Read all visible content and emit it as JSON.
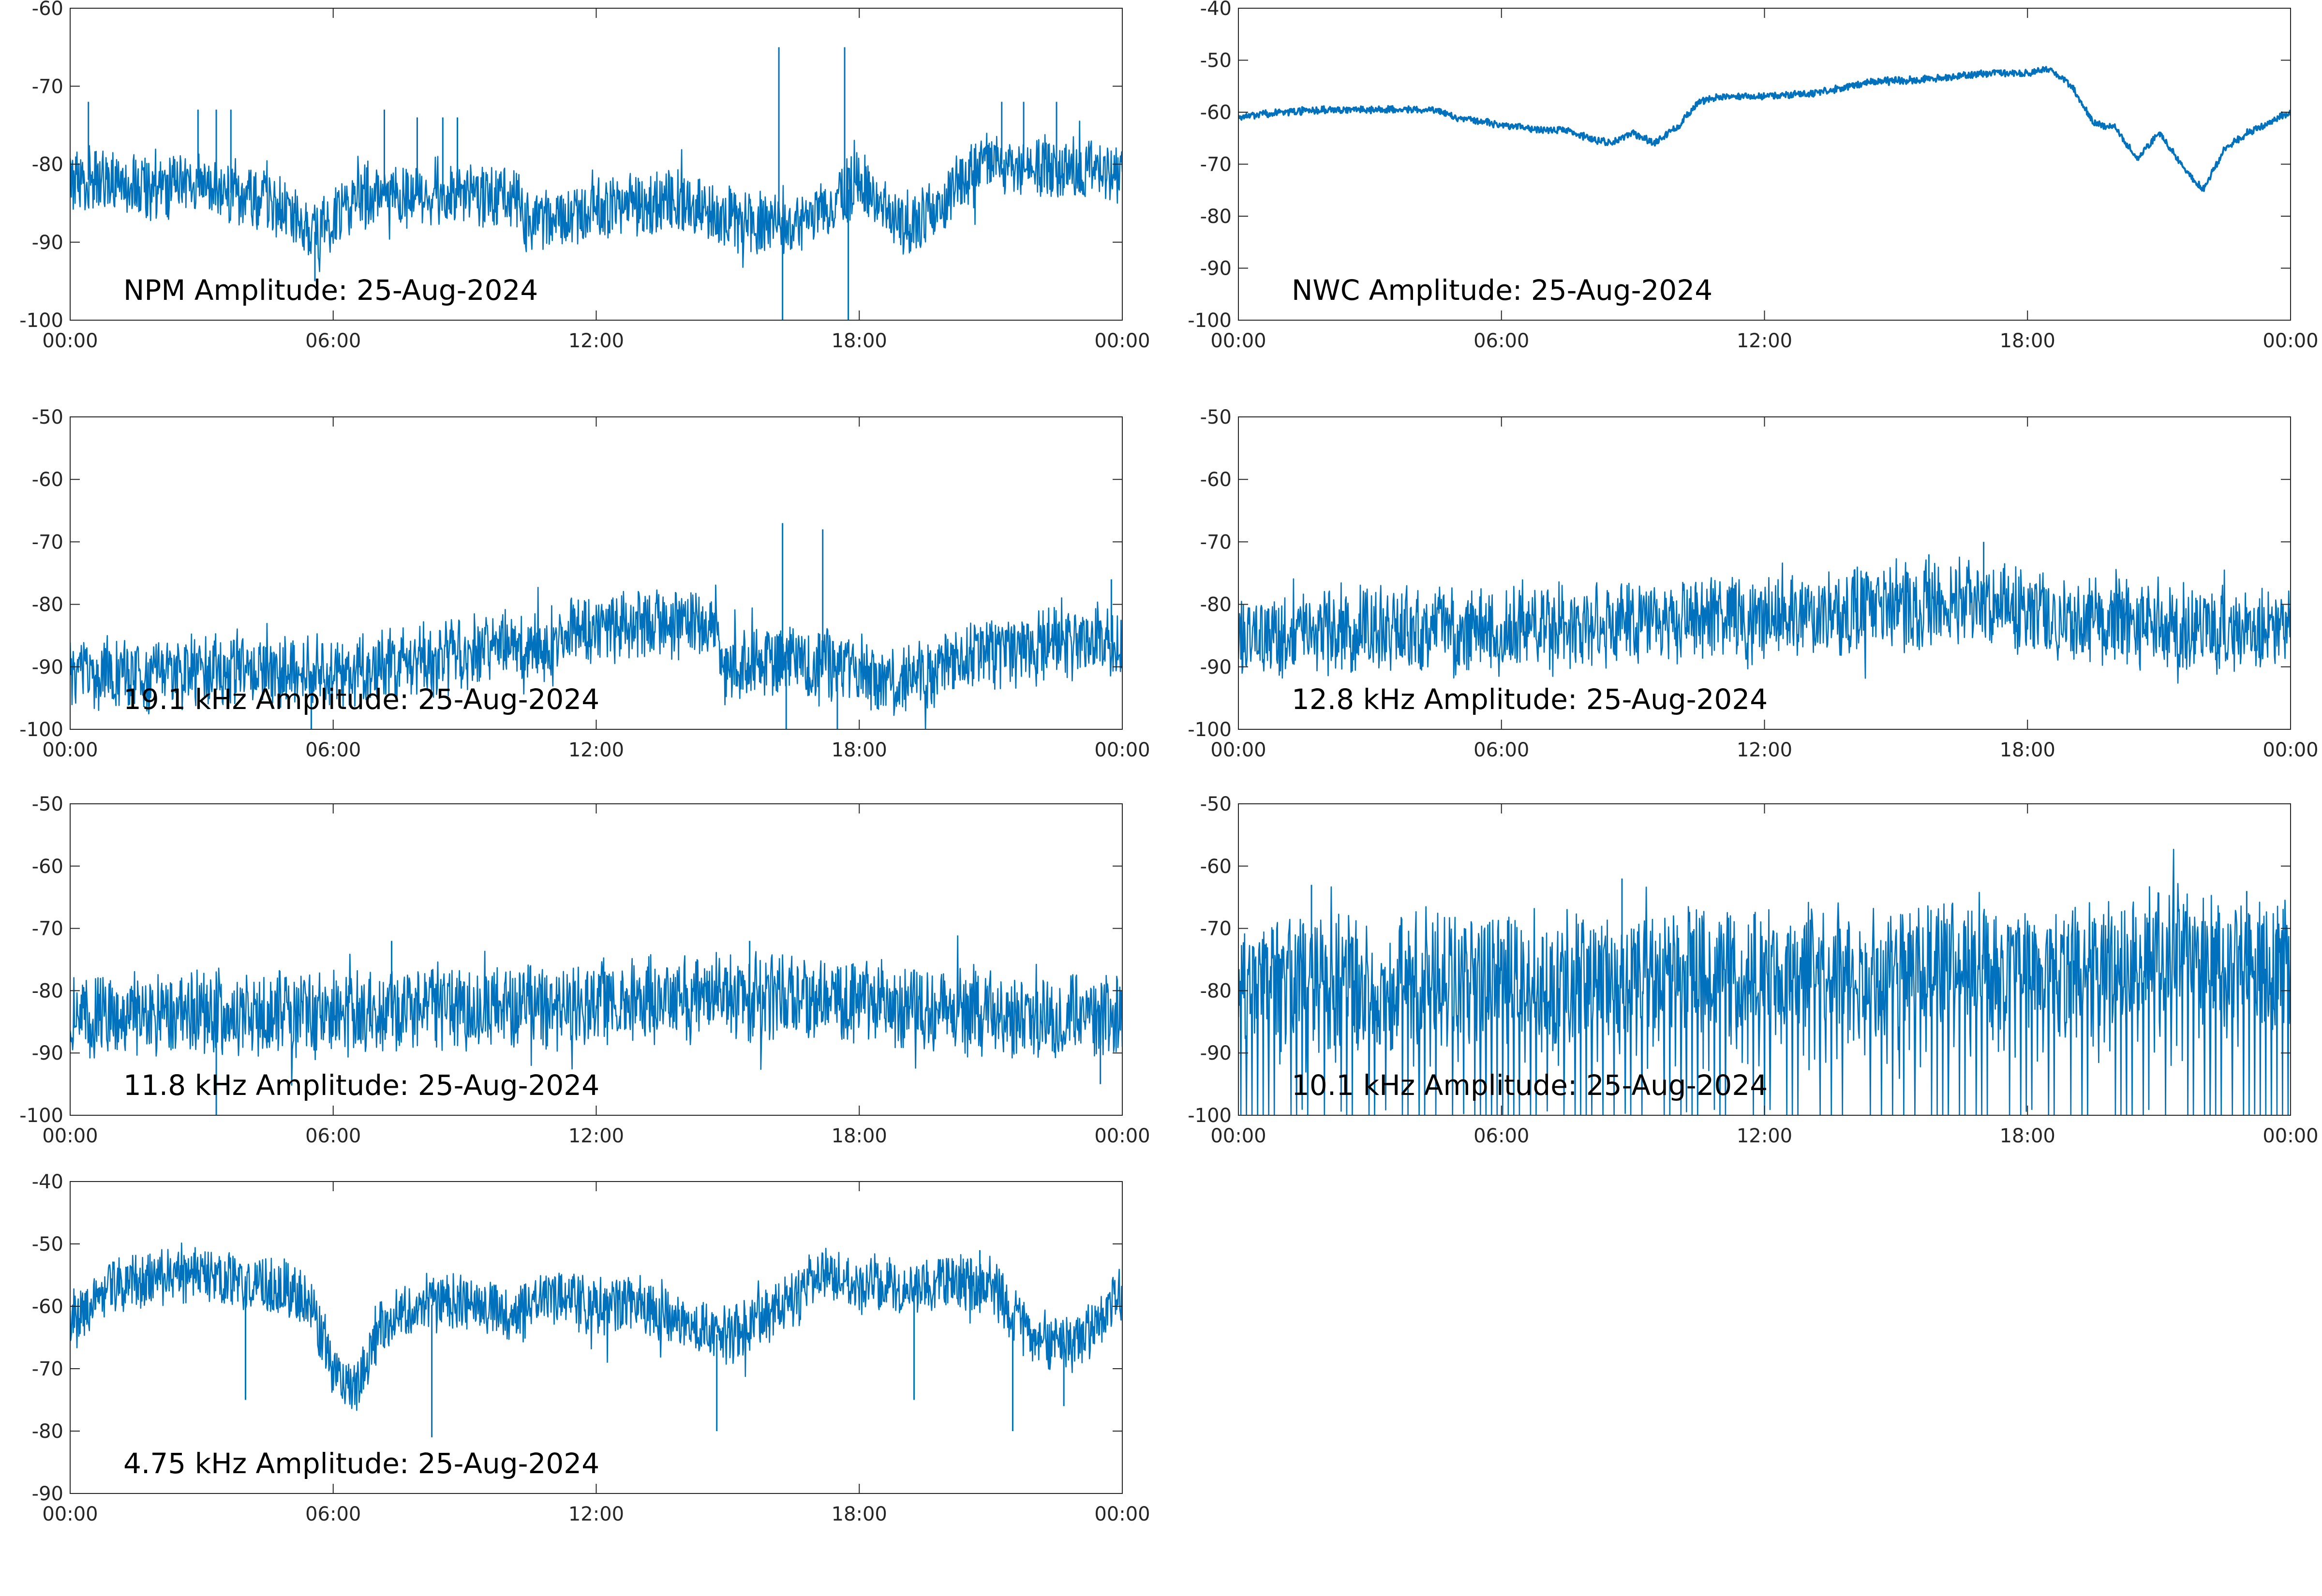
{
  "figure": {
    "style": {
      "line_color": "#0072bd",
      "axes_color": "#262626",
      "text_color": "#000000"
    }
  },
  "chart_data": [
    {
      "type": "line",
      "title": "NPM Amplitude: 25-Aug-2024",
      "xlabel": "",
      "ylabel": "",
      "xlim": [
        "00:00",
        "24:00"
      ],
      "xticks": [
        "00:00",
        "06:00",
        "12:00",
        "18:00",
        "00:00"
      ],
      "ylim": [
        -100,
        -60
      ],
      "yticks": [
        -100,
        -90,
        -80,
        -70,
        -60
      ],
      "grid": false,
      "series": [
        {
          "profile": {
            "x": [
              "00:00",
              "01:00",
              "02:00",
              "03:00",
              "04:00",
              "05:00",
              "05:30",
              "06:00",
              "06:30",
              "07:00",
              "08:00",
              "09:00",
              "10:00",
              "10:20",
              "10:21",
              "11:00",
              "12:00",
              "13:00",
              "14:00",
              "15:00",
              "16:00",
              "17:00",
              "18:00",
              "18:30",
              "19:00",
              "19:30",
              "20:00",
              "21:00",
              "22:00",
              "23:00",
              "24:00"
            ],
            "y": [
              -82,
              -82,
              -83,
              -83,
              -84,
              -86,
              -89,
              -87,
              -84,
              -84,
              -84,
              -84,
              -84,
              -85,
              -88,
              -87,
              -86,
              -85,
              -85,
              -87,
              -88,
              -87,
              -82,
              -85,
              -88,
              -87,
              -84,
              -80,
              -80,
              -81,
              -81
            ]
          },
          "noise_band": 3.5,
          "spikes": [
            {
              "x": "00:25",
              "y": -72
            },
            {
              "x": "02:55",
              "y": -73
            },
            {
              "x": "03:20",
              "y": -73
            },
            {
              "x": "03:40",
              "y": -73
            },
            {
              "x": "07:10",
              "y": -73
            },
            {
              "x": "07:55",
              "y": -74
            },
            {
              "x": "08:30",
              "y": -74
            },
            {
              "x": "08:50",
              "y": -74
            },
            {
              "x": "16:10",
              "y": -65
            },
            {
              "x": "16:15",
              "y": -100
            },
            {
              "x": "17:40",
              "y": -65
            },
            {
              "x": "17:45",
              "y": -100
            },
            {
              "x": "21:15",
              "y": -72
            },
            {
              "x": "21:45",
              "y": -72
            },
            {
              "x": "22:30",
              "y": -72
            },
            {
              "x": "05:35",
              "y": -95
            }
          ]
        }
      ]
    },
    {
      "type": "line",
      "title": "NWC Amplitude: 25-Aug-2024",
      "xlabel": "",
      "ylabel": "",
      "xlim": [
        "00:00",
        "24:00"
      ],
      "xticks": [
        "00:00",
        "06:00",
        "12:00",
        "18:00",
        "00:00"
      ],
      "ylim": [
        -100,
        -40
      ],
      "yticks": [
        -100,
        -90,
        -80,
        -70,
        -60,
        -50,
        -40
      ],
      "grid": false,
      "series": [
        {
          "profile": {
            "x": [
              "00:00",
              "01:00",
              "02:00",
              "03:00",
              "04:00",
              "04:30",
              "05:00",
              "06:00",
              "07:00",
              "07:30",
              "08:00",
              "08:30",
              "09:00",
              "09:30",
              "10:00",
              "10:30",
              "11:00",
              "12:00",
              "13:00",
              "14:00",
              "14:30",
              "15:00",
              "16:00",
              "17:00",
              "17:30",
              "18:00",
              "18:30",
              "19:00",
              "19:30",
              "20:00",
              "20:30",
              "21:00",
              "21:30",
              "22:00",
              "22:30",
              "23:00",
              "23:30",
              "24:00"
            ],
            "y": [
              -61,
              -60,
              -59.5,
              -59.5,
              -59.5,
              -59.5,
              -61,
              -62.5,
              -63.5,
              -63.5,
              -65,
              -66,
              -64,
              -66,
              -63,
              -58,
              -57,
              -57,
              -56.5,
              -55,
              -54,
              -54,
              -53.5,
              -52.5,
              -52.5,
              -52.5,
              -51.5,
              -55,
              -62,
              -63,
              -69,
              -64,
              -70,
              -75,
              -67,
              -64,
              -62,
              -60
            ]
          },
          "noise_band": 0.6,
          "spikes": []
        }
      ]
    },
    {
      "type": "line",
      "title": "19.1 kHz Amplitude: 25-Aug-2024",
      "xlabel": "",
      "ylabel": "",
      "xlim": [
        "00:00",
        "24:00"
      ],
      "xticks": [
        "00:00",
        "06:00",
        "12:00",
        "18:00",
        "00:00"
      ],
      "ylim": [
        -100,
        -50
      ],
      "yticks": [
        -100,
        -90,
        -80,
        -70,
        -60,
        -50
      ],
      "grid": false,
      "series": [
        {
          "profile": {
            "x": [
              "00:00",
              "02:00",
              "04:00",
              "06:00",
              "08:00",
              "09:30",
              "10:00",
              "11:00",
              "11:10",
              "12:00",
              "13:00",
              "14:00",
              "14:45",
              "14:50",
              "16:00",
              "16:30",
              "17:00",
              "17:10",
              "18:00",
              "18:20",
              "19:00",
              "20:00",
              "21:00",
              "22:00",
              "23:00",
              "24:00"
            ],
            "y": [
              -92,
              -91,
              -90,
              -91,
              -89,
              -88,
              -86,
              -88,
              -84,
              -84,
              -83,
              -83,
              -83,
              -90,
              -89,
              -89,
              -91,
              -89,
              -90,
              -92,
              -92,
              -90,
              -88,
              -87,
              -86,
              -86
            ]
          },
          "noise_band": 5,
          "spikes": [
            {
              "x": "16:15",
              "y": -67
            },
            {
              "x": "16:20",
              "y": -100
            },
            {
              "x": "17:10",
              "y": -68
            },
            {
              "x": "17:30",
              "y": -100
            },
            {
              "x": "23:45",
              "y": -76
            },
            {
              "x": "05:30",
              "y": -100
            }
          ]
        }
      ]
    },
    {
      "type": "line",
      "title": "12.8 kHz Amplitude: 25-Aug-2024",
      "xlabel": "",
      "ylabel": "",
      "xlim": [
        "00:00",
        "24:00"
      ],
      "xticks": [
        "00:00",
        "06:00",
        "12:00",
        "18:00",
        "00:00"
      ],
      "ylim": [
        -100,
        -50
      ],
      "yticks": [
        -100,
        -90,
        -80,
        -70,
        -60,
        -50
      ],
      "grid": false,
      "series": [
        {
          "profile": {
            "x": [
              "00:00",
              "03:00",
              "06:00",
              "09:00",
              "12:00",
              "15:00",
              "17:00",
              "18:00",
              "20:00",
              "22:00",
              "24:00"
            ],
            "y": [
              -85,
              -84,
              -84,
              -83,
              -82,
              -80,
              -80,
              -81,
              -83,
              -84,
              -84
            ]
          },
          "noise_band": 6,
          "spikes": [
            {
              "x": "17:00",
              "y": -70
            },
            {
              "x": "15:45",
              "y": -72
            }
          ]
        }
      ]
    },
    {
      "type": "line",
      "title": "11.8 kHz Amplitude: 25-Aug-2024",
      "xlabel": "",
      "ylabel": "",
      "xlim": [
        "00:00",
        "24:00"
      ],
      "xticks": [
        "00:00",
        "06:00",
        "12:00",
        "18:00",
        "00:00"
      ],
      "ylim": [
        -100,
        -50
      ],
      "yticks": [
        -100,
        -90,
        -80,
        -70,
        -60,
        -50
      ],
      "grid": false,
      "series": [
        {
          "profile": {
            "x": [
              "00:00",
              "03:00",
              "06:00",
              "09:00",
              "12:00",
              "15:00",
              "17:00",
              "18:00",
              "20:00",
              "22:00",
              "24:00"
            ],
            "y": [
              -84,
              -84,
              -84,
              -83,
              -82,
              -81,
              -81,
              -82,
              -83,
              -84,
              -84
            ]
          },
          "noise_band": 6,
          "spikes": [
            {
              "x": "07:20",
              "y": -72
            },
            {
              "x": "15:30",
              "y": -72
            },
            {
              "x": "03:20",
              "y": -100
            },
            {
              "x": "23:30",
              "y": -95
            }
          ]
        }
      ]
    },
    {
      "type": "line",
      "title": "10.1 kHz Amplitude: 25-Aug-2024",
      "xlabel": "",
      "ylabel": "",
      "xlim": [
        "00:00",
        "24:00"
      ],
      "xticks": [
        "00:00",
        "06:00",
        "12:00",
        "18:00",
        "00:00"
      ],
      "ylim": [
        -100,
        -50
      ],
      "yticks": [
        -100,
        -90,
        -80,
        -70,
        -60,
        -50
      ],
      "grid": false,
      "series": [
        {
          "profile": {
            "x": [
              "00:00",
              "06:00",
              "12:00",
              "18:00",
              "20:00",
              "21:00",
              "21:30",
              "22:00",
              "24:00"
            ],
            "y": [
              -78,
              -78,
              -77,
              -76,
              -76,
              -74,
              -72,
              -76,
              -76
            ]
          },
          "noise_band": 9,
          "dropouts": "periodic",
          "spikes": [
            {
              "x": "08:45",
              "y": -62
            },
            {
              "x": "01:40",
              "y": -63
            },
            {
              "x": "23:00",
              "y": -64
            }
          ]
        }
      ]
    },
    {
      "type": "line",
      "title": "4.75 kHz Amplitude: 25-Aug-2024",
      "xlabel": "",
      "ylabel": "",
      "xlim": [
        "00:00",
        "24:00"
      ],
      "xticks": [
        "00:00",
        "06:00",
        "12:00",
        "18:00",
        "00:00"
      ],
      "ylim": [
        -90,
        -40
      ],
      "yticks": [
        -90,
        -80,
        -70,
        -60,
        -50,
        -40
      ],
      "grid": false,
      "series": [
        {
          "profile": {
            "x": [
              "00:00",
              "00:30",
              "01:00",
              "02:00",
              "03:00",
              "04:00",
              "05:00",
              "05:30",
              "06:00",
              "06:30",
              "07:00",
              "07:30",
              "08:00",
              "09:00",
              "10:00",
              "11:00",
              "12:00",
              "13:00",
              "14:00",
              "15:00",
              "16:00",
              "16:30",
              "17:00",
              "18:00",
              "19:00",
              "20:00",
              "21:00",
              "22:00",
              "23:00",
              "24:00"
            ],
            "y": [
              -62,
              -60,
              -57,
              -55,
              -55,
              -56,
              -57,
              -60,
              -70,
              -74,
              -64,
              -62,
              -60,
              -59,
              -62,
              -58,
              -60,
              -60,
              -63,
              -65,
              -61,
              -59,
              -55,
              -56,
              -57,
              -56,
              -57,
              -65,
              -66,
              -58
            ]
          },
          "noise_band": 4,
          "spikes": [
            {
              "x": "04:00",
              "y": -75
            },
            {
              "x": "08:15",
              "y": -81
            },
            {
              "x": "14:45",
              "y": -80
            },
            {
              "x": "19:15",
              "y": -75
            },
            {
              "x": "21:30",
              "y": -80
            },
            {
              "x": "22:40",
              "y": -76
            },
            {
              "x": "20:45",
              "y": -51
            }
          ]
        }
      ]
    }
  ]
}
